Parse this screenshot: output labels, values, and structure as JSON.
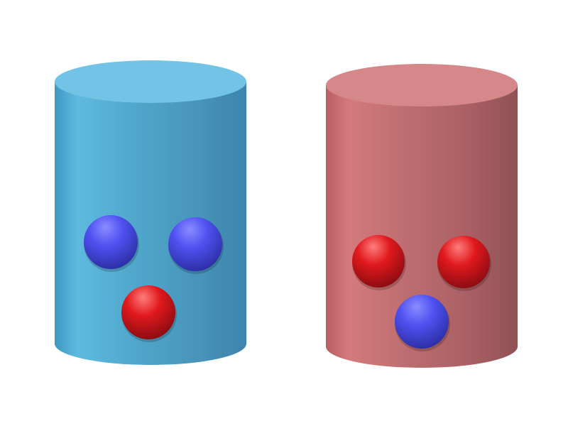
{
  "scene": {
    "background_color": "#ffffff",
    "cylinders": [
      {
        "id": "left",
        "color": "blue",
        "body_colors": [
          "#3f97c2",
          "#5fbadf",
          "#4fa5c9",
          "#4894bb",
          "#3d84ad"
        ],
        "top_color": "#72c3e6",
        "balls": [
          "blue",
          "blue",
          "red"
        ]
      },
      {
        "id": "right",
        "color": "red",
        "body_colors": [
          "#b85f63",
          "#d47a7c",
          "#bb6c6f",
          "#a96064",
          "#8f5156"
        ],
        "top_color": "#d5878a",
        "balls": [
          "red",
          "red",
          "blue"
        ]
      }
    ],
    "ball_colors": {
      "blue": {
        "light": "#8b8cff",
        "mid": "#4f52f1",
        "dark": "#2e30a8"
      },
      "red": {
        "light": "#ff7d7d",
        "mid": "#e0191d",
        "dark": "#8f0d12"
      }
    }
  }
}
